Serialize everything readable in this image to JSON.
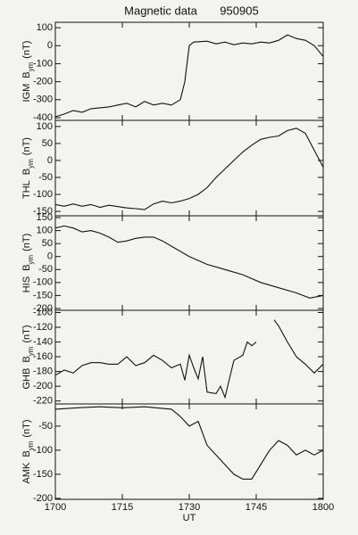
{
  "chart_data": [
    {
      "type": "line",
      "title": "Magnetic data",
      "subtitle": "950905",
      "station": "IGM",
      "symbol": "B",
      "symbol_sub": "ym",
      "unit": "(nT)",
      "xlim": [
        0,
        60
      ],
      "ylim": [
        -415,
        130
      ],
      "yticks": [
        -400,
        -300,
        -200,
        -100,
        0,
        100
      ],
      "color": "#111111",
      "x": [
        0,
        2,
        4,
        6,
        8,
        10,
        12,
        14,
        16,
        18,
        20,
        22,
        24,
        26,
        28,
        29,
        30,
        31,
        34,
        36,
        38,
        40,
        42,
        44,
        46,
        48,
        50,
        52,
        54,
        56,
        58,
        60
      ],
      "values": [
        -395,
        -380,
        -360,
        -370,
        -350,
        -345,
        -340,
        -330,
        -320,
        -340,
        -310,
        -330,
        -320,
        -330,
        -300,
        -200,
        0,
        20,
        25,
        10,
        20,
        5,
        15,
        10,
        20,
        15,
        30,
        60,
        40,
        30,
        0,
        -60
      ]
    },
    {
      "type": "line",
      "station": "THL",
      "symbol": "B",
      "symbol_sub": "ym",
      "unit": "(nT)",
      "xlim": [
        0,
        60
      ],
      "ylim": [
        -163,
        118
      ],
      "yticks": [
        -150,
        -100,
        -50,
        0,
        50,
        100
      ],
      "color": "#111111",
      "x": [
        0,
        2,
        4,
        6,
        8,
        10,
        12,
        14,
        16,
        18,
        20,
        22,
        24,
        26,
        28,
        30,
        32,
        34,
        36,
        38,
        40,
        42,
        44,
        46,
        48,
        50,
        52,
        54,
        56,
        58,
        60
      ],
      "values": [
        -130,
        -135,
        -128,
        -135,
        -130,
        -138,
        -132,
        -136,
        -140,
        -142,
        -145,
        -128,
        -120,
        -125,
        -120,
        -112,
        -100,
        -80,
        -50,
        -25,
        0,
        25,
        45,
        62,
        68,
        72,
        88,
        95,
        80,
        30,
        -20
      ]
    },
    {
      "type": "line",
      "station": "HIS",
      "symbol": "B",
      "symbol_sub": "ym",
      "unit": "(nT)",
      "xlim": [
        0,
        60
      ],
      "ylim": [
        -207,
        157
      ],
      "yticks": [
        -200,
        -150,
        -100,
        -50,
        0,
        50,
        100,
        150
      ],
      "color": "#111111",
      "x": [
        0,
        2,
        4,
        6,
        8,
        10,
        12,
        14,
        16,
        18,
        20,
        22,
        24,
        26,
        28,
        30,
        34,
        38,
        42,
        46,
        50,
        54,
        57,
        60
      ],
      "values": [
        110,
        118,
        110,
        95,
        100,
        90,
        75,
        55,
        60,
        70,
        75,
        75,
        60,
        40,
        20,
        0,
        -30,
        -50,
        -70,
        -100,
        -120,
        -140,
        -160,
        -150
      ]
    },
    {
      "type": "line",
      "station": "GHB",
      "symbol": "B",
      "symbol_sub": "ym",
      "unit": "(nT)",
      "xlim": [
        0,
        60
      ],
      "ylim": [
        -224,
        -97
      ],
      "yticks": [
        -220,
        -200,
        -180,
        -160,
        -140,
        -120,
        -100
      ],
      "color": "#111111",
      "x": [
        0,
        2,
        4,
        6,
        8,
        10,
        12,
        14,
        16,
        18,
        20,
        22,
        24,
        26,
        28,
        29,
        30,
        31,
        32,
        33,
        34,
        36,
        37,
        38,
        40,
        42,
        43,
        44,
        45,
        46,
        49,
        50,
        52,
        54,
        56,
        58,
        60
      ],
      "values": [
        -185,
        -178,
        -182,
        -172,
        -168,
        -168,
        -170,
        -170,
        -160,
        -172,
        -168,
        -158,
        -165,
        -175,
        -170,
        -192,
        -158,
        -175,
        -190,
        -160,
        -208,
        -210,
        -200,
        -215,
        -165,
        -158,
        -140,
        -145,
        -140,
        null,
        -110,
        -118,
        -140,
        -160,
        -170,
        -182,
        -170
      ]
    },
    {
      "type": "line",
      "station": "AMK",
      "symbol": "B",
      "symbol_sub": "ym",
      "unit": "(nT)",
      "xlabel": "UT",
      "xlim": [
        0,
        60
      ],
      "ylim": [
        -202,
        -4
      ],
      "yticks": [
        -200,
        -150,
        -100,
        -50
      ],
      "xticks": [
        {
          "value": 0,
          "label": "1700"
        },
        {
          "value": 15,
          "label": "1715"
        },
        {
          "value": 30,
          "label": "1730"
        },
        {
          "value": 45,
          "label": "1745"
        },
        {
          "value": 60,
          "label": "1800"
        }
      ],
      "color": "#111111",
      "x": [
        0,
        5,
        10,
        15,
        20,
        26,
        28,
        30,
        32,
        34,
        36,
        38,
        40,
        42,
        44,
        46,
        48,
        50,
        52,
        54,
        56,
        58,
        60
      ],
      "values": [
        -15,
        -12,
        -10,
        -12,
        -10,
        -15,
        -30,
        -50,
        -40,
        -90,
        -110,
        -130,
        -150,
        -160,
        -160,
        -130,
        -100,
        -80,
        -90,
        -110,
        -100,
        -110,
        -100
      ]
    }
  ]
}
